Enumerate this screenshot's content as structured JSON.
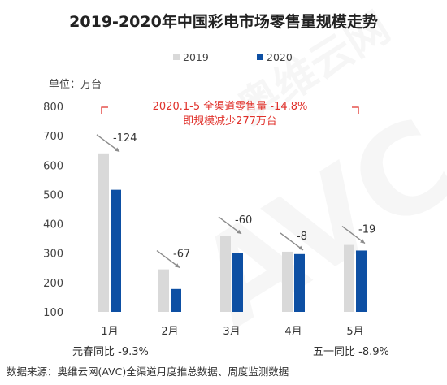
{
  "chart_data": {
    "type": "bar",
    "title": "2019-2020年中国彩电市场零售量规模走势",
    "ylabel": "单位：万台",
    "xlabel": "",
    "categories": [
      "1月",
      "2月",
      "3月",
      "4月",
      "5月"
    ],
    "ylim": [
      100,
      800
    ],
    "yticks": [
      100,
      200,
      300,
      400,
      500,
      600,
      700,
      800
    ],
    "grid": false,
    "legend_position": "top-right",
    "series": [
      {
        "name": "2019",
        "color": "#d9d9d9",
        "values": [
          640,
          245,
          360,
          305,
          328
        ]
      },
      {
        "name": "2020",
        "color": "#0d4fa3",
        "values": [
          516,
          178,
          300,
          297,
          309
        ]
      }
    ],
    "change_labels": [
      "-124",
      "-67",
      "-60",
      "-8",
      "-19"
    ],
    "annotation": {
      "line1": "2020.1-5 全渠道零售量 -14.8%",
      "line2": "即规模减少277万台",
      "color": "#e0312b"
    },
    "bottom_notes": {
      "left": "元春同比 -9.3%",
      "right": "五一同比 -8.9%"
    },
    "watermark": "AVC 奥维云网 ALL VIEW CLOUD"
  },
  "footer": {
    "source": "数据来源：奥维云网(AVC)全渠道月度推总数据、周度监测数据"
  }
}
